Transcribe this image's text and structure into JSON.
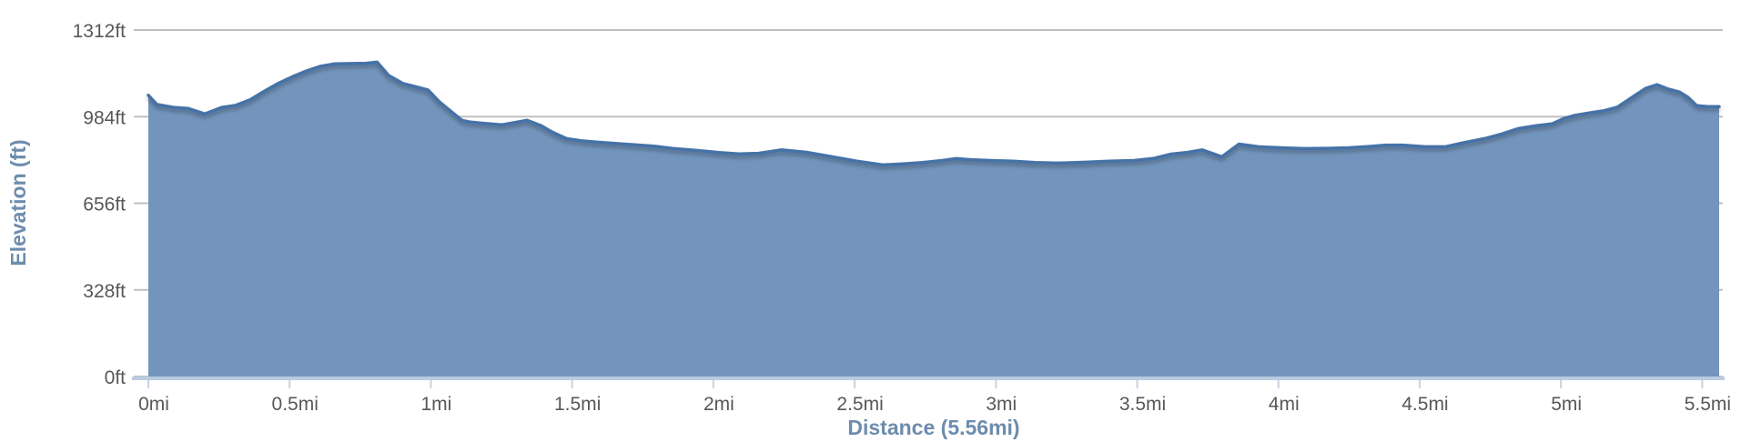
{
  "chart": {
    "y_axis": {
      "title": "Elevation (ft)",
      "tick_labels": [
        "0ft",
        "328ft",
        "656ft",
        "984ft",
        "1312ft"
      ],
      "tick_values": [
        0,
        328,
        656,
        984,
        1312
      ]
    },
    "x_axis": {
      "title": "Distance (5.56mi)",
      "tick_labels": [
        "0mi",
        "0.5mi",
        "1mi",
        "1.5mi",
        "2mi",
        "2.5mi",
        "3mi",
        "3.5mi",
        "4mi",
        "4.5mi",
        "5mi",
        "5.5mi"
      ],
      "tick_values": [
        0,
        0.5,
        1,
        1.5,
        2,
        2.5,
        3,
        3.5,
        4,
        4.5,
        5,
        5.5
      ]
    },
    "colors": {
      "line": "#4572A7",
      "fill": "#7395BD",
      "grid": "#C0C0C0",
      "axis_line": "#B9CBDF",
      "tick_mark": "#C3D3E3",
      "tick_text": "#58585a",
      "axis_title_text": "#6D8CAD"
    }
  },
  "chart_data": {
    "type": "area",
    "title": "",
    "xlabel": "Distance (5.56mi)",
    "ylabel": "Elevation (ft)",
    "x_unit": "mi",
    "y_unit": "ft",
    "xlim": [
      0,
      5.56
    ],
    "ylim": [
      0,
      1312
    ],
    "x_ticks": [
      0,
      0.5,
      1,
      1.5,
      2,
      2.5,
      3,
      3.5,
      4,
      4.5,
      5,
      5.5
    ],
    "y_ticks": [
      0,
      328,
      656,
      984,
      1312
    ],
    "grid": "horizontal-only",
    "legend": "none",
    "total_distance_mi": 5.56,
    "series": [
      {
        "name": "Elevation",
        "points": [
          [
            0.0,
            1065
          ],
          [
            0.03,
            1030
          ],
          [
            0.09,
            1019
          ],
          [
            0.14,
            1015
          ],
          [
            0.2,
            994
          ],
          [
            0.26,
            1019
          ],
          [
            0.31,
            1027
          ],
          [
            0.36,
            1048
          ],
          [
            0.41,
            1080
          ],
          [
            0.46,
            1110
          ],
          [
            0.51,
            1135
          ],
          [
            0.56,
            1157
          ],
          [
            0.61,
            1175
          ],
          [
            0.66,
            1184
          ],
          [
            0.72,
            1185
          ],
          [
            0.77,
            1186
          ],
          [
            0.81,
            1190
          ],
          [
            0.85,
            1140
          ],
          [
            0.9,
            1110
          ],
          [
            0.95,
            1096
          ],
          [
            0.99,
            1085
          ],
          [
            1.03,
            1040
          ],
          [
            1.07,
            1005
          ],
          [
            1.11,
            970
          ],
          [
            1.14,
            963
          ],
          [
            1.19,
            958
          ],
          [
            1.25,
            953
          ],
          [
            1.3,
            962
          ],
          [
            1.34,
            970
          ],
          [
            1.39,
            950
          ],
          [
            1.43,
            925
          ],
          [
            1.48,
            901
          ],
          [
            1.53,
            893
          ],
          [
            1.58,
            888
          ],
          [
            1.63,
            884
          ],
          [
            1.71,
            878
          ],
          [
            1.79,
            872
          ],
          [
            1.86,
            863
          ],
          [
            1.94,
            856
          ],
          [
            2.02,
            848
          ],
          [
            2.09,
            843
          ],
          [
            2.16,
            845
          ],
          [
            2.24,
            858
          ],
          [
            2.33,
            849
          ],
          [
            2.42,
            832
          ],
          [
            2.51,
            815
          ],
          [
            2.6,
            801
          ],
          [
            2.67,
            805
          ],
          [
            2.74,
            810
          ],
          [
            2.81,
            818
          ],
          [
            2.86,
            825
          ],
          [
            2.91,
            821
          ],
          [
            2.98,
            818
          ],
          [
            3.06,
            815
          ],
          [
            3.14,
            810
          ],
          [
            3.22,
            808
          ],
          [
            3.31,
            811
          ],
          [
            3.4,
            815
          ],
          [
            3.49,
            818
          ],
          [
            3.56,
            826
          ],
          [
            3.62,
            842
          ],
          [
            3.68,
            849
          ],
          [
            3.73,
            858
          ],
          [
            3.8,
            832
          ],
          [
            3.86,
            880
          ],
          [
            3.93,
            870
          ],
          [
            4.01,
            866
          ],
          [
            4.09,
            863
          ],
          [
            4.17,
            864
          ],
          [
            4.25,
            866
          ],
          [
            4.32,
            871
          ],
          [
            4.38,
            876
          ],
          [
            4.44,
            876
          ],
          [
            4.52,
            870
          ],
          [
            4.59,
            870
          ],
          [
            4.65,
            884
          ],
          [
            4.73,
            901
          ],
          [
            4.79,
            918
          ],
          [
            4.85,
            939
          ],
          [
            4.91,
            949
          ],
          [
            4.97,
            957
          ],
          [
            5.01,
            977
          ],
          [
            5.05,
            989
          ],
          [
            5.1,
            998
          ],
          [
            5.15,
            1006
          ],
          [
            5.2,
            1020
          ],
          [
            5.26,
            1063
          ],
          [
            5.3,
            1091
          ],
          [
            5.34,
            1105
          ],
          [
            5.38,
            1088
          ],
          [
            5.42,
            1077
          ],
          [
            5.45,
            1057
          ],
          [
            5.48,
            1026
          ],
          [
            5.52,
            1022
          ],
          [
            5.56,
            1022
          ]
        ]
      }
    ]
  }
}
